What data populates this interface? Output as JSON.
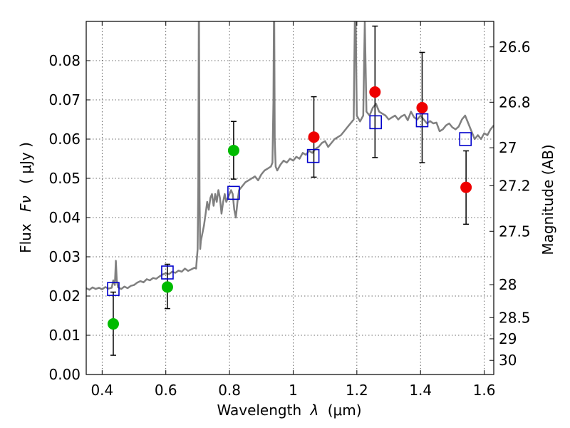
{
  "chart_data": {
    "type": "scatter",
    "xlabel": "Wavelength",
    "xlabel_lambda": "λ",
    "xlabel_unit": "(μm)",
    "ylabel": "Flux",
    "ylabel_symbol": "Fν",
    "ylabel_unit": "( μJy )",
    "right_ylabel": "Magnitude (AB)",
    "xlim": [
      0.35,
      1.63
    ],
    "ylim": [
      0.0,
      0.09
    ],
    "x_ticks": [
      0.4,
      0.6,
      0.8,
      1.0,
      1.2,
      1.4,
      1.6
    ],
    "x_tick_labels": [
      "0.4",
      "0.6",
      "0.8",
      "1",
      "1.2",
      "1.4",
      "1.6"
    ],
    "y_ticks": [
      0.0,
      0.01,
      0.02,
      0.03,
      0.04,
      0.05,
      0.06,
      0.07,
      0.08
    ],
    "y_tick_labels": [
      "0.00",
      "0.01",
      "0.02",
      "0.03",
      "0.04",
      "0.05",
      "0.06",
      "0.07",
      "0.08"
    ],
    "right_ticks": [
      {
        "flux": 0.0835,
        "label": "26.6"
      },
      {
        "flux": 0.0694,
        "label": "26.8"
      },
      {
        "flux": 0.0578,
        "label": "27"
      },
      {
        "flux": 0.0481,
        "label": "27.2"
      },
      {
        "flux": 0.0365,
        "label": "27.5"
      },
      {
        "flux": 0.0229,
        "label": "28"
      },
      {
        "flux": 0.0145,
        "label": "28.5"
      },
      {
        "flux": 0.0091,
        "label": "29"
      },
      {
        "flux": 0.0036,
        "label": "30"
      }
    ],
    "grid": true,
    "series": [
      {
        "kind": "model_spectrum",
        "color": "#808080",
        "x": [
          0.35,
          0.36,
          0.37,
          0.38,
          0.39,
          0.4,
          0.41,
          0.42,
          0.43,
          0.435,
          0.44,
          0.443,
          0.446,
          0.45,
          0.46,
          0.47,
          0.48,
          0.49,
          0.5,
          0.51,
          0.52,
          0.53,
          0.54,
          0.55,
          0.56,
          0.57,
          0.58,
          0.59,
          0.6,
          0.61,
          0.62,
          0.63,
          0.64,
          0.65,
          0.66,
          0.67,
          0.68,
          0.69,
          0.695,
          0.7,
          0.702,
          0.704,
          0.706,
          0.708,
          0.71,
          0.715,
          0.72,
          0.725,
          0.73,
          0.735,
          0.74,
          0.745,
          0.75,
          0.755,
          0.76,
          0.765,
          0.77,
          0.775,
          0.78,
          0.785,
          0.79,
          0.795,
          0.8,
          0.805,
          0.81,
          0.815,
          0.82,
          0.825,
          0.83,
          0.84,
          0.85,
          0.86,
          0.87,
          0.88,
          0.89,
          0.9,
          0.91,
          0.92,
          0.93,
          0.935,
          0.938,
          0.94,
          0.942,
          0.945,
          0.95,
          0.96,
          0.97,
          0.98,
          0.99,
          1.0,
          1.01,
          1.02,
          1.03,
          1.04,
          1.05,
          1.06,
          1.07,
          1.08,
          1.09,
          1.1,
          1.11,
          1.12,
          1.13,
          1.14,
          1.15,
          1.16,
          1.17,
          1.18,
          1.19,
          1.195,
          1.2,
          1.21,
          1.22,
          1.225,
          1.23,
          1.24,
          1.25,
          1.26,
          1.27,
          1.28,
          1.29,
          1.3,
          1.31,
          1.32,
          1.33,
          1.34,
          1.35,
          1.36,
          1.37,
          1.38,
          1.39,
          1.4,
          1.41,
          1.42,
          1.43,
          1.44,
          1.45,
          1.46,
          1.47,
          1.48,
          1.49,
          1.5,
          1.51,
          1.52,
          1.53,
          1.54,
          1.55,
          1.56,
          1.57,
          1.58,
          1.59,
          1.6,
          1.61,
          1.62,
          1.63
        ],
        "y": [
          0.022,
          0.0216,
          0.0222,
          0.0218,
          0.0221,
          0.0217,
          0.0223,
          0.0219,
          0.0221,
          0.024,
          0.0228,
          0.029,
          0.024,
          0.0222,
          0.0218,
          0.0224,
          0.022,
          0.0226,
          0.0228,
          0.0234,
          0.0238,
          0.0235,
          0.0243,
          0.024,
          0.0246,
          0.0244,
          0.025,
          0.0255,
          0.0258,
          0.0256,
          0.0262,
          0.0259,
          0.0265,
          0.0262,
          0.027,
          0.0264,
          0.0268,
          0.0272,
          0.027,
          0.032,
          0.048,
          0.1,
          0.045,
          0.032,
          0.034,
          0.036,
          0.038,
          0.041,
          0.044,
          0.042,
          0.045,
          0.046,
          0.043,
          0.046,
          0.044,
          0.047,
          0.045,
          0.041,
          0.044,
          0.046,
          0.044,
          0.045,
          0.046,
          0.047,
          0.046,
          0.042,
          0.04,
          0.044,
          0.047,
          0.048,
          0.049,
          0.0495,
          0.05,
          0.0505,
          0.0495,
          0.051,
          0.052,
          0.0525,
          0.053,
          0.054,
          0.07,
          0.1,
          0.06,
          0.053,
          0.052,
          0.0535,
          0.0545,
          0.054,
          0.055,
          0.0545,
          0.0555,
          0.055,
          0.0565,
          0.056,
          0.057,
          0.0565,
          0.0575,
          0.058,
          0.059,
          0.0595,
          0.058,
          0.059,
          0.06,
          0.0605,
          0.061,
          0.062,
          0.063,
          0.064,
          0.065,
          0.1,
          0.066,
          0.0645,
          0.066,
          0.09,
          0.067,
          0.066,
          0.068,
          0.069,
          0.067,
          0.0665,
          0.066,
          0.065,
          0.0655,
          0.066,
          0.065,
          0.0658,
          0.0662,
          0.0648,
          0.067,
          0.0655,
          0.065,
          0.066,
          0.065,
          0.064,
          0.0646,
          0.064,
          0.0642,
          0.062,
          0.0625,
          0.0635,
          0.064,
          0.063,
          0.0625,
          0.0632,
          0.065,
          0.066,
          0.064,
          0.062,
          0.06,
          0.061,
          0.06,
          0.0615,
          0.061,
          0.0625,
          0.0635
        ]
      },
      {
        "kind": "model_photometry",
        "marker": "open-square",
        "color": "#0000cc",
        "x": [
          0.435,
          0.605,
          0.813,
          1.063,
          1.259,
          1.405,
          1.541
        ],
        "y": [
          0.0218,
          0.026,
          0.0463,
          0.0557,
          0.0643,
          0.0648,
          0.06
        ]
      },
      {
        "kind": "observed",
        "marker": "filled-circle",
        "color": "#00bb00",
        "x": [
          0.435,
          0.605,
          0.813
        ],
        "y": [
          0.0129,
          0.0223,
          0.0571
        ],
        "yerr_low": [
          0.008,
          0.0055,
          0.0073
        ],
        "yerr_high": [
          0.0081,
          0.0058,
          0.0074
        ]
      },
      {
        "kind": "observed",
        "marker": "filled-circle",
        "color": "#ee0000",
        "x": [
          1.065,
          1.257,
          1.405,
          1.543
        ],
        "y": [
          0.0605,
          0.072,
          0.068,
          0.0477
        ],
        "yerr_low": [
          0.0102,
          0.0167,
          0.014,
          0.0094
        ],
        "yerr_high": [
          0.0103,
          0.0168,
          0.0141,
          0.0093
        ]
      }
    ]
  }
}
